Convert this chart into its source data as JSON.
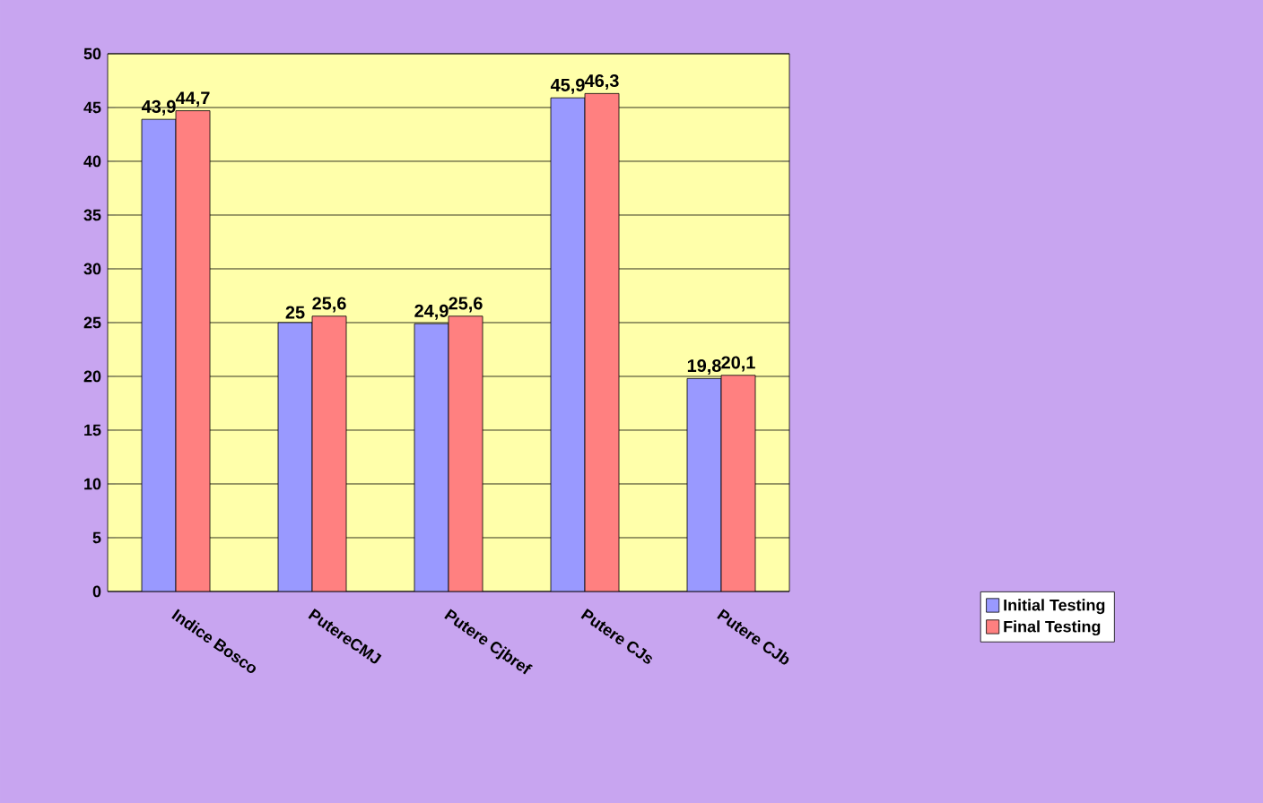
{
  "chart_data": {
    "type": "bar",
    "categories": [
      "Indice Bosco",
      "PutereCMJ",
      "Putere Cjbref",
      "Putere CJs",
      "Putere CJb"
    ],
    "series": [
      {
        "name": "Initial Testing",
        "color": "#9999ff",
        "values": [
          43.9,
          25,
          24.9,
          45.9,
          19.8
        ],
        "value_labels": [
          "43,9",
          "25",
          "24,9",
          "45,9",
          "19,8"
        ]
      },
      {
        "name": "Final Testing",
        "color": "#ff8080",
        "values": [
          44.7,
          25.6,
          25.6,
          46.3,
          20.1
        ],
        "value_labels": [
          "44,7",
          "25,6",
          "25,6",
          "46,3",
          "20,1"
        ]
      }
    ],
    "ylim": [
      0,
      50
    ],
    "yticks": [
      0,
      5,
      10,
      15,
      20,
      25,
      30,
      35,
      40,
      45,
      50
    ],
    "grid": "y",
    "legend": "bottom right"
  }
}
